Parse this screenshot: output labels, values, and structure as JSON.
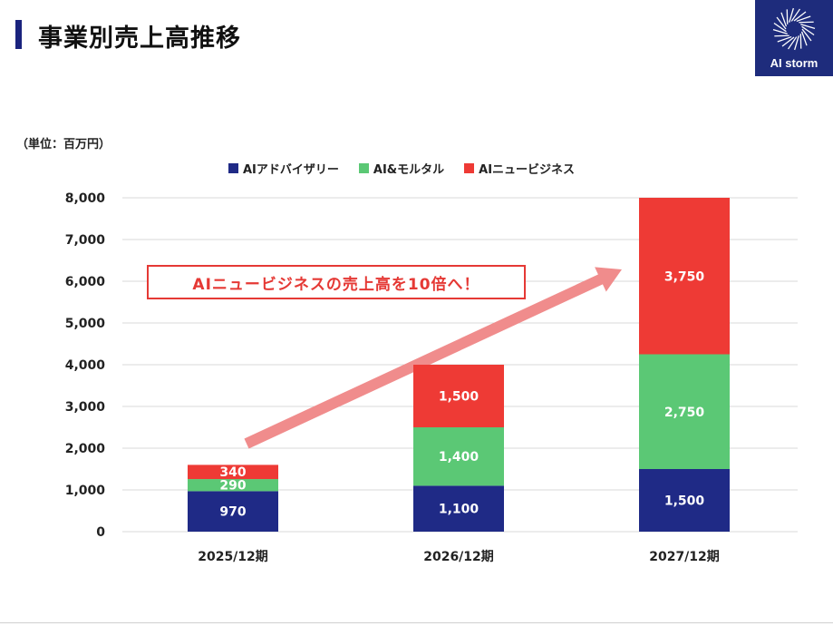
{
  "header": {
    "title": "事業別売上高推移"
  },
  "logo": {
    "text": "AI storm"
  },
  "chart_data": {
    "type": "bar",
    "stacked": true,
    "unit_label": "（単位：百万円）",
    "categories": [
      "2025/12期",
      "2026/12期",
      "2027/12期"
    ],
    "series": [
      {
        "name": "AIアドバイザリー",
        "color": "#1f2a86",
        "values": [
          970,
          1100,
          1500
        ],
        "labels": [
          "970",
          "1,100",
          "1,500"
        ]
      },
      {
        "name": "AI&モルタル",
        "color": "#5bc875",
        "values": [
          290,
          1400,
          2750
        ],
        "labels": [
          "290",
          "1,400",
          "2,750"
        ]
      },
      {
        "name": "AIニュービジネス",
        "color": "#ee3a35",
        "values": [
          340,
          1500,
          3750
        ],
        "labels": [
          "340",
          "1,500",
          "3,750"
        ]
      }
    ],
    "ylim": [
      0,
      8000
    ],
    "yticks": [
      0,
      1000,
      2000,
      3000,
      4000,
      5000,
      6000,
      7000,
      8000
    ],
    "ytick_labels": [
      "0",
      "1,000",
      "2,000",
      "3,000",
      "4,000",
      "5,000",
      "6,000",
      "7,000",
      "8,000"
    ],
    "grid": true,
    "legend": "top",
    "annotation": "AIニュービジネスの売上高を10倍へ！"
  }
}
